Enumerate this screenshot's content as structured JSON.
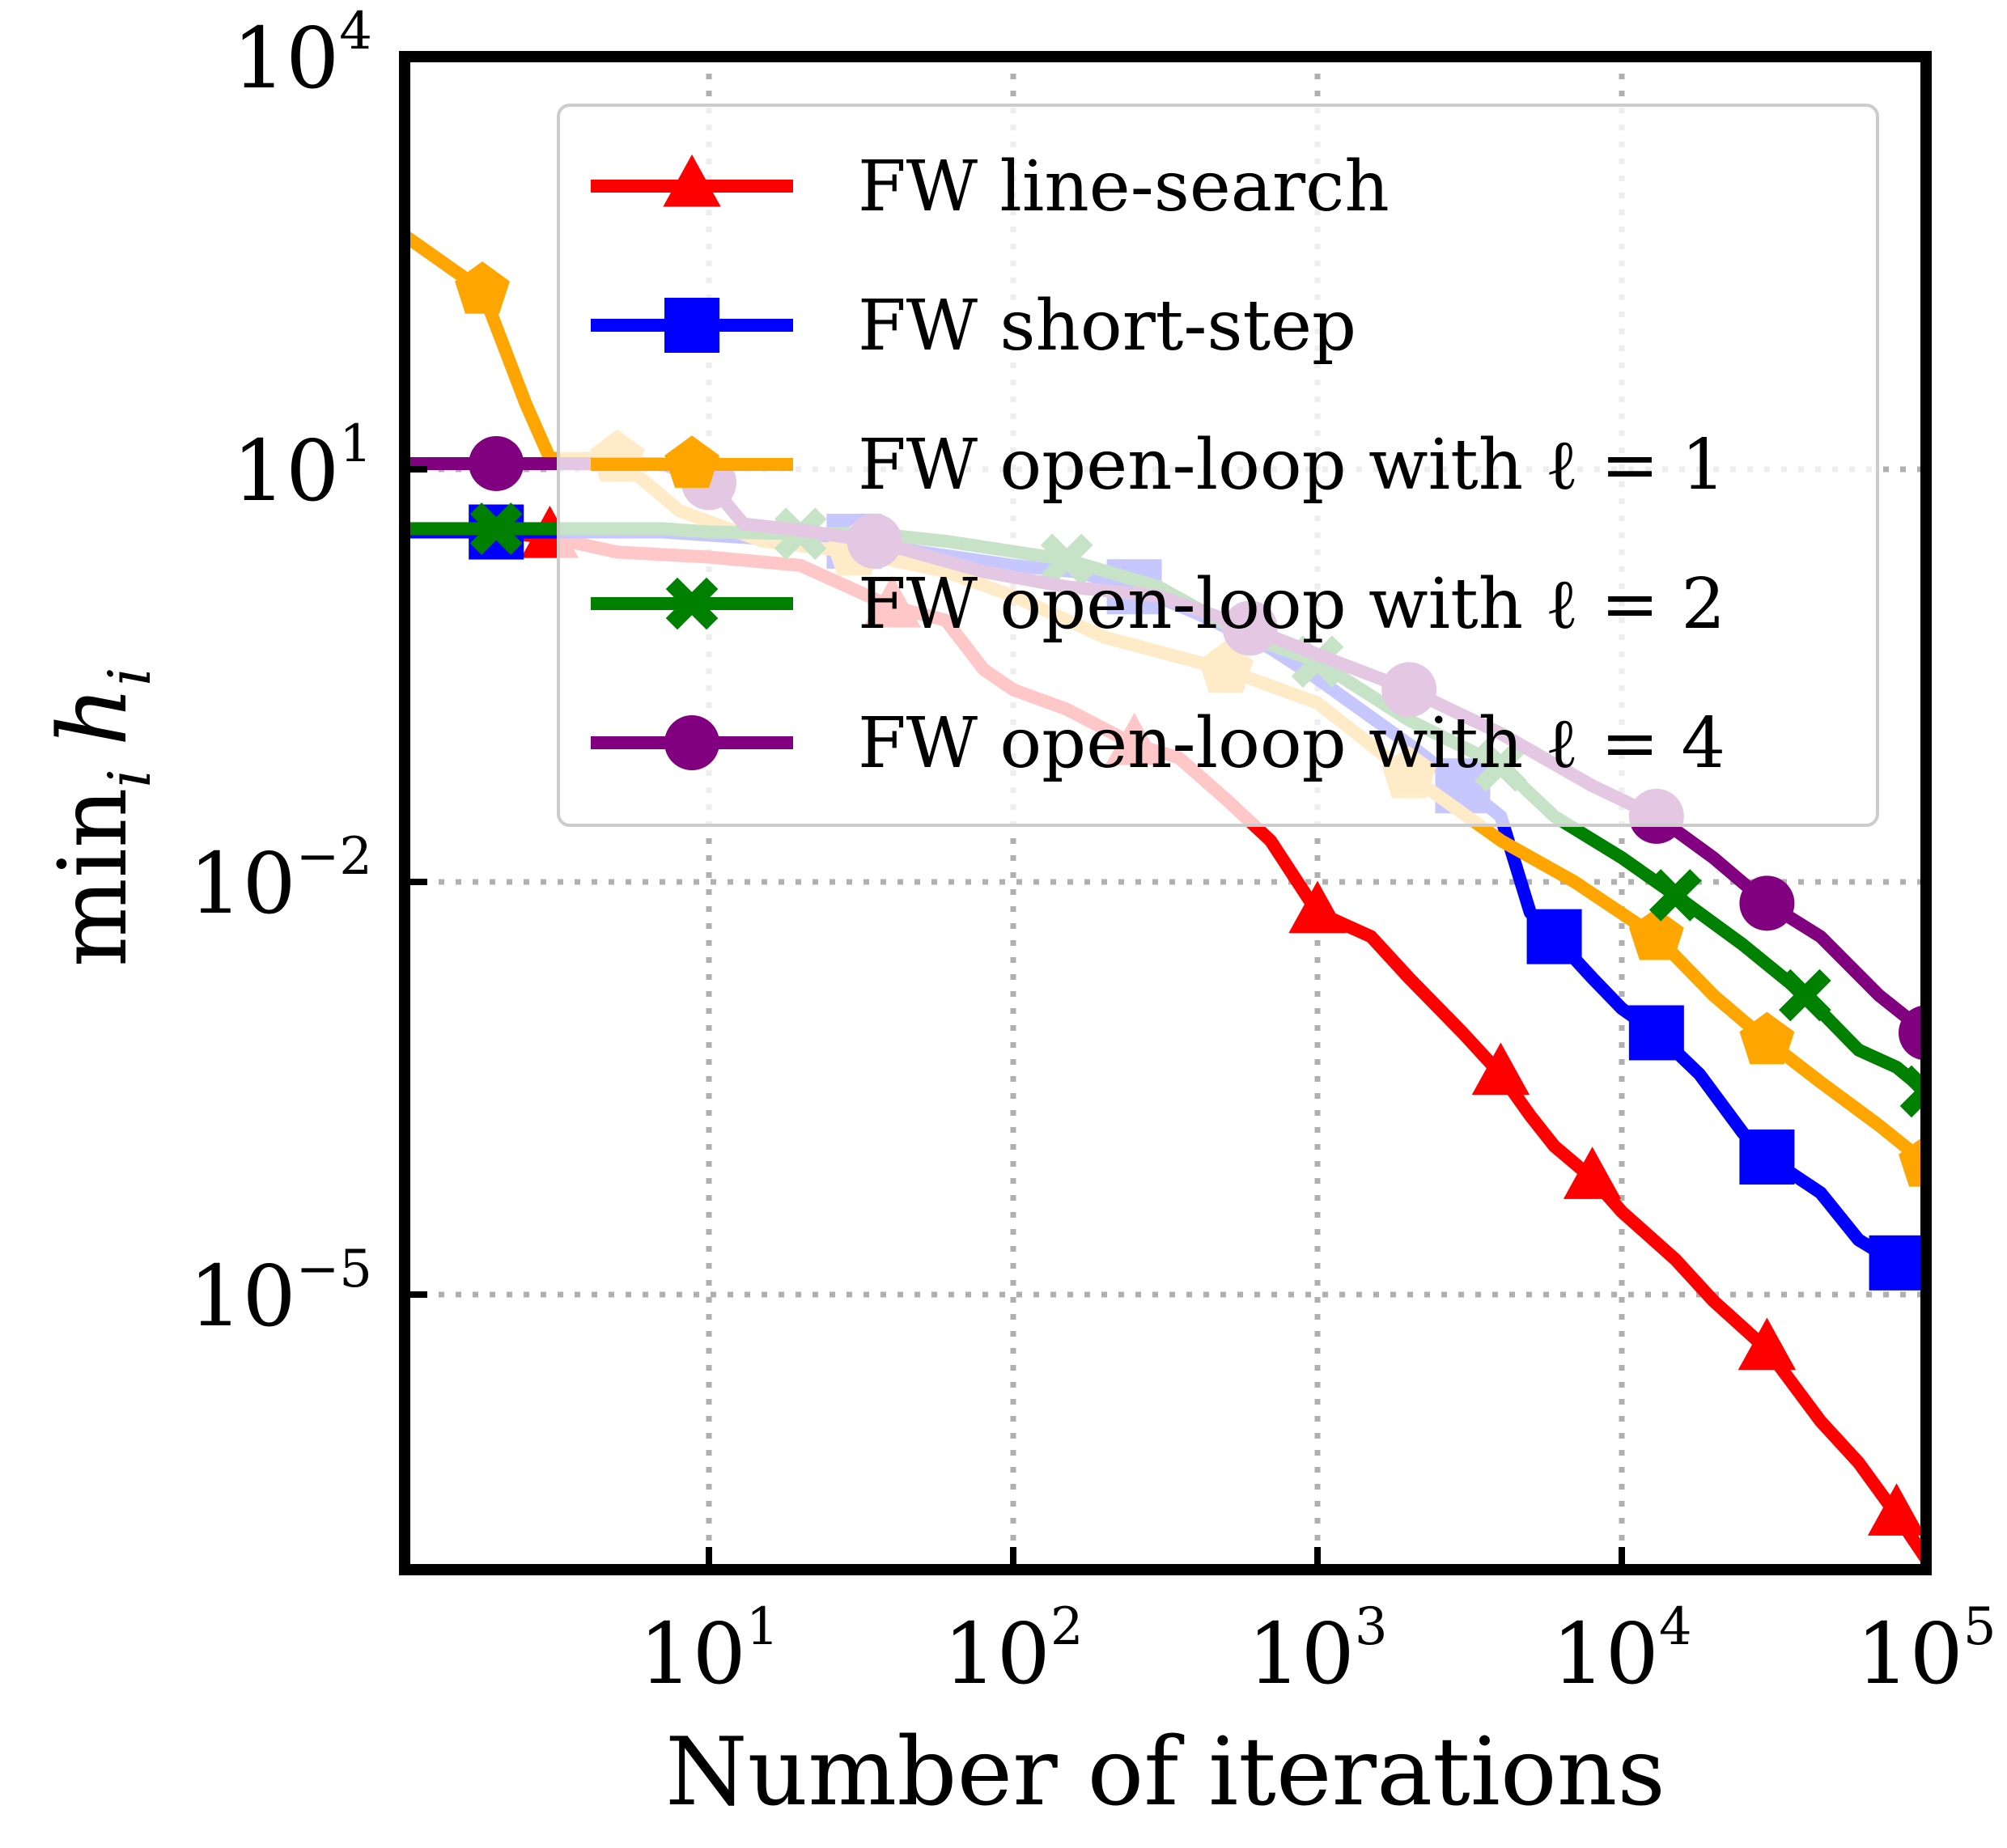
{
  "chart_data": {
    "type": "line",
    "xscale": "log",
    "yscale": "log",
    "xlim": [
      1,
      100000
    ],
    "ylim": [
      1e-07,
      10000
    ],
    "xlabel": "Number of iterations",
    "ylabel_parts": {
      "base": "min",
      "sub": "i",
      "var": "h",
      "var_sub": "i"
    },
    "x_ticks": [
      {
        "value": 10,
        "base": "10",
        "exp": "1"
      },
      {
        "value": 100,
        "base": "10",
        "exp": "2"
      },
      {
        "value": 1000,
        "base": "10",
        "exp": "3"
      },
      {
        "value": 10000,
        "base": "10",
        "exp": "4"
      },
      {
        "value": 100000,
        "base": "10",
        "exp": "5"
      }
    ],
    "y_ticks": [
      {
        "value": 10000,
        "base": "10",
        "exp": "4"
      },
      {
        "value": 10,
        "base": "10",
        "exp": "1"
      },
      {
        "value": 0.01,
        "base": "10",
        "exp": "−2"
      },
      {
        "value": 1e-05,
        "base": "10",
        "exp": "−5"
      }
    ],
    "grid": true,
    "legend_position": "upper-right",
    "series": [
      {
        "name": "FW line-search",
        "color": "#ff0000",
        "marker": "triangle",
        "points": [
          [
            1,
            3.5
          ],
          [
            2,
            3.5
          ],
          [
            3,
            3.2
          ],
          [
            5,
            2.5
          ],
          [
            10,
            2.3
          ],
          [
            20,
            2.0
          ],
          [
            40,
            1.0
          ],
          [
            60,
            0.8
          ],
          [
            80,
            0.35
          ],
          [
            100,
            0.25
          ],
          [
            150,
            0.18
          ],
          [
            250,
            0.1
          ],
          [
            350,
            0.08
          ],
          [
            500,
            0.04
          ],
          [
            700,
            0.02
          ],
          [
            1000,
            0.006
          ],
          [
            1500,
            0.004
          ],
          [
            2000,
            0.002
          ],
          [
            3000,
            0.0008
          ],
          [
            4000,
            0.0004
          ],
          [
            5000,
            0.0002
          ],
          [
            6000,
            0.00012
          ],
          [
            8000,
            7e-05
          ],
          [
            10000,
            4e-05
          ],
          [
            15000,
            1.8e-05
          ],
          [
            20000,
            9e-06
          ],
          [
            30000,
            4e-06
          ],
          [
            45000,
            1.2e-06
          ],
          [
            60000,
            6e-07
          ],
          [
            80000,
            2.5e-07
          ],
          [
            100000,
            1.2e-07
          ]
        ]
      },
      {
        "name": "FW short-step",
        "color": "#0000ff",
        "marker": "square",
        "points": [
          [
            1,
            3.5
          ],
          [
            2,
            3.5
          ],
          [
            5,
            3.5
          ],
          [
            7,
            3.5
          ],
          [
            20,
            3.0
          ],
          [
            30,
            3.0
          ],
          [
            50,
            2.5
          ],
          [
            100,
            2.0
          ],
          [
            160,
            1.8
          ],
          [
            250,
            1.4
          ],
          [
            400,
            0.9
          ],
          [
            700,
            0.5
          ],
          [
            1000,
            0.3
          ],
          [
            2000,
            0.1
          ],
          [
            3000,
            0.05
          ],
          [
            4000,
            0.03
          ],
          [
            5000,
            0.006
          ],
          [
            6000,
            0.004
          ],
          [
            8000,
            0.002
          ],
          [
            10000,
            0.0012
          ],
          [
            13000,
            0.0008
          ],
          [
            18000,
            0.0004
          ],
          [
            25000,
            0.00015
          ],
          [
            30000,
            0.0001
          ],
          [
            45000,
            5.5e-05
          ],
          [
            60000,
            2.5e-05
          ],
          [
            80000,
            1.7e-05
          ],
          [
            100000,
            1.5e-05
          ]
        ]
      },
      {
        "name": "FW open-loop with ℓ = 1",
        "color": "#ffa500",
        "marker": "pentagon",
        "points": [
          [
            1,
            500
          ],
          [
            1.8,
            200
          ],
          [
            2.5,
            30
          ],
          [
            3,
            12
          ],
          [
            5,
            12
          ],
          [
            8,
            5
          ],
          [
            15,
            3
          ],
          [
            30,
            2.5
          ],
          [
            60,
            1.8
          ],
          [
            100,
            1.2
          ],
          [
            200,
            0.6
          ],
          [
            500,
            0.35
          ],
          [
            1000,
            0.2
          ],
          [
            2000,
            0.06
          ],
          [
            4000,
            0.02
          ],
          [
            7000,
            0.01
          ],
          [
            13000,
            0.004
          ],
          [
            20000,
            0.0015
          ],
          [
            30000,
            0.0007
          ],
          [
            45000,
            0.00035
          ],
          [
            70000,
            0.00017
          ],
          [
            100000,
            9e-05
          ]
        ]
      },
      {
        "name": "FW open-loop with ℓ = 2",
        "color": "#008000",
        "marker": "x",
        "points": [
          [
            1,
            3.7
          ],
          [
            2,
            3.7
          ],
          [
            7,
            3.7
          ],
          [
            10,
            3.5
          ],
          [
            20,
            3.4
          ],
          [
            35,
            3.4
          ],
          [
            60,
            3.0
          ],
          [
            150,
            2.2
          ],
          [
            300,
            1.4
          ],
          [
            600,
            0.6
          ],
          [
            1000,
            0.4
          ],
          [
            2000,
            0.15
          ],
          [
            4000,
            0.07
          ],
          [
            6000,
            0.03
          ],
          [
            10000,
            0.015
          ],
          [
            15000,
            0.008
          ],
          [
            25000,
            0.0035
          ],
          [
            40000,
            0.0015
          ],
          [
            60000,
            0.0006
          ],
          [
            80000,
            0.00045
          ],
          [
            100000,
            0.0003
          ]
        ]
      },
      {
        "name": "FW open-loop with ℓ = 4",
        "color": "#800080",
        "marker": "circle",
        "points": [
          [
            1,
            11
          ],
          [
            2,
            11
          ],
          [
            5,
            11
          ],
          [
            7,
            11
          ],
          [
            10,
            8
          ],
          [
            13,
            4
          ],
          [
            20,
            3.6
          ],
          [
            35,
            3.0
          ],
          [
            80,
            1.8
          ],
          [
            150,
            1.4
          ],
          [
            300,
            1.2
          ],
          [
            600,
            0.7
          ],
          [
            1000,
            0.45
          ],
          [
            2000,
            0.25
          ],
          [
            4000,
            0.12
          ],
          [
            8000,
            0.05
          ],
          [
            13000,
            0.03
          ],
          [
            20000,
            0.015
          ],
          [
            30000,
            0.007
          ],
          [
            45000,
            0.004
          ],
          [
            70000,
            0.0015
          ],
          [
            100000,
            0.0008
          ]
        ]
      }
    ]
  }
}
